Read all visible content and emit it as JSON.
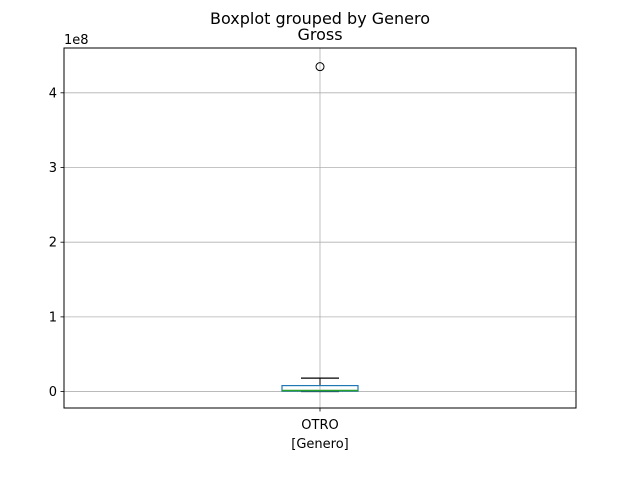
{
  "chart_data": {
    "type": "boxplot",
    "suptitle": "Boxplot grouped by Genero",
    "title": "Gross",
    "xlabel": "[Genero]",
    "ylabel": "",
    "y_offset_label": "1e8",
    "categories": [
      "OTRO"
    ],
    "ylim": [
      -22000000,
      460000000
    ],
    "yticks": [
      0,
      100000000,
      200000000,
      300000000,
      400000000
    ],
    "ytick_labels": [
      "0",
      "1",
      "2",
      "3",
      "4"
    ],
    "boxes": [
      {
        "category": "OTRO",
        "whisker_low": 0,
        "q1": 500000,
        "median": 1500000,
        "q3": 8000000,
        "whisker_high": 18000000,
        "outliers": [
          435000000
        ]
      }
    ],
    "grid": true,
    "colors": {
      "box": "#1f77b4",
      "median": "#2ca02c",
      "whisker": "#000000",
      "grid": "#b0b0b0"
    }
  }
}
